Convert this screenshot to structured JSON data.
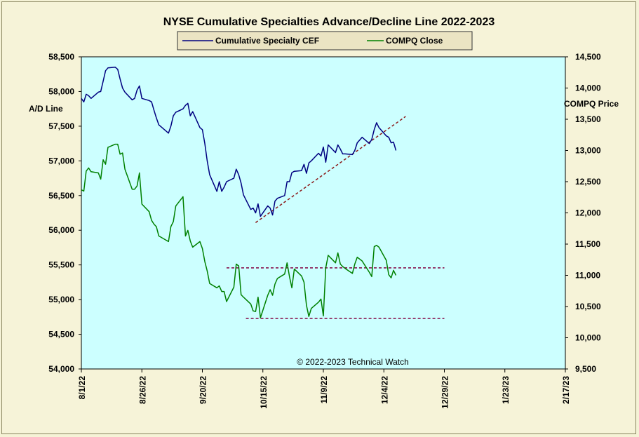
{
  "chart_data": {
    "type": "line",
    "title": "NYSE Cumulative  Specialties  Advance/Decline  Line  2022-2023",
    "left_axis_label": "A/D Line",
    "right_axis_label": "COMPQ Price",
    "copyright": "© 2022-2023  Technical Watch",
    "left_ylim": [
      54000,
      58500
    ],
    "right_ylim": [
      9500,
      14500
    ],
    "left_ticks": [
      54000,
      54500,
      55000,
      55500,
      56000,
      56500,
      57000,
      57500,
      58000,
      58500
    ],
    "left_tick_labels": [
      "54,000",
      "54,500",
      "55,000",
      "55,500",
      "56,000",
      "56,500",
      "57,000",
      "57,500",
      "58,000",
      "58,500"
    ],
    "right_ticks": [
      9500,
      10000,
      10500,
      11000,
      11500,
      12000,
      12500,
      13000,
      13500,
      14000,
      14500
    ],
    "right_tick_labels": [
      "9,500",
      "10,000",
      "10,500",
      "11,000",
      "11,500",
      "12,000",
      "12,500",
      "13,000",
      "13,500",
      "14,000",
      "14,500"
    ],
    "x_ticks": [
      "2022-08-01",
      "2022-08-26",
      "2022-09-20",
      "2022-10-15",
      "2022-11-09",
      "2022-12-04",
      "2022-12-29",
      "2023-01-23",
      "2023-02-17"
    ],
    "x_tick_labels": [
      "8/1/22",
      "8/26/22",
      "9/20/22",
      "10/15/22",
      "11/9/22",
      "12/4/22",
      "12/29/22",
      "1/23/23",
      "2/17/23"
    ],
    "xlim": [
      "2022-08-01",
      "2023-02-17"
    ],
    "plot_background": "#ccffff",
    "legend_placement": "top-center",
    "series": [
      {
        "name": "Cumulative Specialty CEF",
        "axis": "left",
        "color": "#000080",
        "x": [
          "2022-08-01",
          "2022-08-02",
          "2022-08-03",
          "2022-08-04",
          "2022-08-05",
          "2022-08-08",
          "2022-08-09",
          "2022-08-10",
          "2022-08-11",
          "2022-08-12",
          "2022-08-15",
          "2022-08-16",
          "2022-08-17",
          "2022-08-18",
          "2022-08-19",
          "2022-08-22",
          "2022-08-23",
          "2022-08-24",
          "2022-08-25",
          "2022-08-26",
          "2022-08-29",
          "2022-08-30",
          "2022-08-31",
          "2022-09-01",
          "2022-09-02",
          "2022-09-06",
          "2022-09-07",
          "2022-09-08",
          "2022-09-09",
          "2022-09-12",
          "2022-09-13",
          "2022-09-14",
          "2022-09-15",
          "2022-09-16",
          "2022-09-19",
          "2022-09-20",
          "2022-09-21",
          "2022-09-22",
          "2022-09-23",
          "2022-09-26",
          "2022-09-27",
          "2022-09-28",
          "2022-09-29",
          "2022-09-30",
          "2022-10-03",
          "2022-10-04",
          "2022-10-05",
          "2022-10-06",
          "2022-10-07",
          "2022-10-10",
          "2022-10-11",
          "2022-10-12",
          "2022-10-13",
          "2022-10-14",
          "2022-10-17",
          "2022-10-18",
          "2022-10-19",
          "2022-10-20",
          "2022-10-21",
          "2022-10-24",
          "2022-10-25",
          "2022-10-26",
          "2022-10-27",
          "2022-10-28",
          "2022-10-31",
          "2022-11-01",
          "2022-11-02",
          "2022-11-03",
          "2022-11-04",
          "2022-11-07",
          "2022-11-08",
          "2022-11-09",
          "2022-11-10",
          "2022-11-11",
          "2022-11-14",
          "2022-11-15",
          "2022-11-16",
          "2022-11-17",
          "2022-11-18",
          "2022-11-21",
          "2022-11-22",
          "2022-11-23",
          "2022-11-25",
          "2022-11-28",
          "2022-11-29",
          "2022-11-30",
          "2022-12-01",
          "2022-12-02",
          "2022-12-05",
          "2022-12-06",
          "2022-12-07",
          "2022-12-08",
          "2022-12-09"
        ],
        "values": [
          57900,
          57850,
          57960,
          57940,
          57900,
          57990,
          58000,
          58150,
          58300,
          58340,
          58350,
          58320,
          58180,
          58050,
          57990,
          57880,
          57900,
          58020,
          58080,
          57900,
          57870,
          57850,
          57730,
          57620,
          57520,
          57400,
          57500,
          57650,
          57700,
          57750,
          57800,
          57830,
          57650,
          57710,
          57480,
          57450,
          57250,
          57000,
          56800,
          56560,
          56700,
          56560,
          56620,
          56700,
          56750,
          56880,
          56800,
          56680,
          56510,
          56300,
          56320,
          56250,
          56380,
          56200,
          56350,
          56320,
          56220,
          56420,
          56460,
          56500,
          56700,
          56700,
          56830,
          56850,
          56860,
          56950,
          56820,
          56970,
          57000,
          57110,
          57070,
          57200,
          56980,
          57230,
          57120,
          57230,
          57170,
          57100,
          57100,
          57090,
          57150,
          57260,
          57340,
          57250,
          57310,
          57450,
          57550,
          57480,
          57360,
          57340,
          57260,
          57270,
          57150
        ]
      },
      {
        "name": "COMPQ Close",
        "axis": "right",
        "color": "#008000",
        "x": [
          "2022-08-01",
          "2022-08-02",
          "2022-08-03",
          "2022-08-04",
          "2022-08-05",
          "2022-08-08",
          "2022-08-09",
          "2022-08-10",
          "2022-08-11",
          "2022-08-12",
          "2022-08-15",
          "2022-08-16",
          "2022-08-17",
          "2022-08-18",
          "2022-08-19",
          "2022-08-22",
          "2022-08-23",
          "2022-08-24",
          "2022-08-25",
          "2022-08-26",
          "2022-08-29",
          "2022-08-30",
          "2022-08-31",
          "2022-09-01",
          "2022-09-02",
          "2022-09-06",
          "2022-09-07",
          "2022-09-08",
          "2022-09-09",
          "2022-09-12",
          "2022-09-13",
          "2022-09-14",
          "2022-09-15",
          "2022-09-16",
          "2022-09-19",
          "2022-09-20",
          "2022-09-21",
          "2022-09-22",
          "2022-09-23",
          "2022-09-26",
          "2022-09-27",
          "2022-09-28",
          "2022-09-29",
          "2022-09-30",
          "2022-10-03",
          "2022-10-04",
          "2022-10-05",
          "2022-10-06",
          "2022-10-07",
          "2022-10-10",
          "2022-10-11",
          "2022-10-12",
          "2022-10-13",
          "2022-10-14",
          "2022-10-17",
          "2022-10-18",
          "2022-10-19",
          "2022-10-20",
          "2022-10-21",
          "2022-10-24",
          "2022-10-25",
          "2022-10-26",
          "2022-10-27",
          "2022-10-28",
          "2022-10-31",
          "2022-11-01",
          "2022-11-02",
          "2022-11-03",
          "2022-11-04",
          "2022-11-07",
          "2022-11-08",
          "2022-11-09",
          "2022-11-10",
          "2022-11-11",
          "2022-11-14",
          "2022-11-15",
          "2022-11-16",
          "2022-11-17",
          "2022-11-18",
          "2022-11-21",
          "2022-11-22",
          "2022-11-23",
          "2022-11-25",
          "2022-11-28",
          "2022-11-29",
          "2022-11-30",
          "2022-12-01",
          "2022-12-02",
          "2022-12-05",
          "2022-12-06",
          "2022-12-07",
          "2022-12-08",
          "2022-12-09"
        ],
        "values": [
          12370,
          12350,
          12670,
          12720,
          12660,
          12640,
          12540,
          12850,
          12780,
          13050,
          13100,
          13100,
          12940,
          12960,
          12700,
          12380,
          12380,
          12430,
          12640,
          12140,
          12020,
          11880,
          11820,
          11780,
          11630,
          11540,
          11780,
          11860,
          12110,
          12260,
          11630,
          11720,
          11550,
          11450,
          11540,
          11430,
          11220,
          11070,
          10870,
          10800,
          10830,
          10740,
          10740,
          10580,
          10810,
          11180,
          11150,
          10690,
          10650,
          10540,
          10430,
          10420,
          10650,
          10320,
          10680,
          10770,
          10680,
          10860,
          10950,
          11020,
          11200,
          10980,
          10800,
          11100,
          10990,
          10890,
          10520,
          10340,
          10470,
          10570,
          10620,
          10350,
          11120,
          11320,
          11200,
          11360,
          11180,
          11140,
          11110,
          11030,
          11180,
          11290,
          11230,
          11050,
          10980,
          11460,
          11480,
          11450,
          11240,
          11010,
          10960,
          11080,
          11000
        ]
      }
    ],
    "trendlines": [
      {
        "axis": "left",
        "from": {
          "x": "2022-10-12",
          "y": 56110
        },
        "to": {
          "x": "2022-12-13",
          "y": 57640
        },
        "color": "#8b1a1a"
      },
      {
        "axis": "right",
        "from": {
          "x": "2022-09-30",
          "y": 11120
        },
        "to": {
          "x": "2022-12-29",
          "y": 11120
        },
        "color": "#800040"
      },
      {
        "axis": "right",
        "from": {
          "x": "2022-10-08",
          "y": 10310
        },
        "to": {
          "x": "2022-12-29",
          "y": 10310
        },
        "color": "#800040"
      }
    ]
  }
}
